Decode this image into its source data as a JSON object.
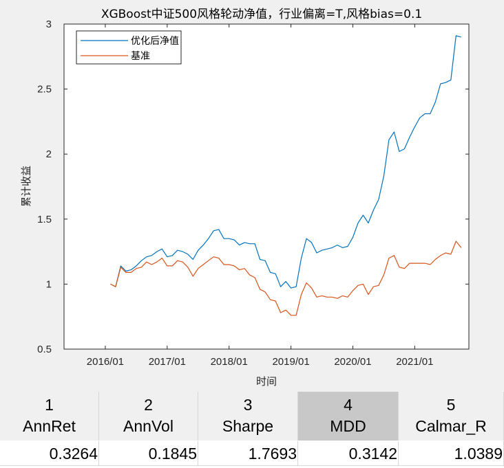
{
  "chart_data": {
    "type": "line",
    "title": "XGBoost中证500风格轮动净值，行业偏离=T,风格bias=0.1",
    "xlabel": "时间",
    "ylabel": "累计收益",
    "ylim": [
      0.5,
      3
    ],
    "yticks": [
      "0.5",
      "1",
      "1.5",
      "2",
      "2.5",
      "3"
    ],
    "xticks": [
      "2016/01",
      "2017/01",
      "2018/01",
      "2019/01",
      "2020/01",
      "2021/01"
    ],
    "legend_position": "top-left",
    "grid": false,
    "x": [
      "2016/02",
      "2016/03",
      "2016/04",
      "2016/05",
      "2016/06",
      "2016/07",
      "2016/08",
      "2016/09",
      "2016/10",
      "2016/11",
      "2016/12",
      "2017/01",
      "2017/02",
      "2017/03",
      "2017/04",
      "2017/05",
      "2017/06",
      "2017/07",
      "2017/08",
      "2017/09",
      "2017/10",
      "2017/11",
      "2017/12",
      "2018/01",
      "2018/02",
      "2018/03",
      "2018/04",
      "2018/05",
      "2018/06",
      "2018/07",
      "2018/08",
      "2018/09",
      "2018/10",
      "2018/11",
      "2018/12",
      "2019/01",
      "2019/02",
      "2019/03",
      "2019/04",
      "2019/05",
      "2019/06",
      "2019/07",
      "2019/08",
      "2019/09",
      "2019/10",
      "2019/11",
      "2019/12",
      "2020/01",
      "2020/02",
      "2020/03",
      "2020/04",
      "2020/05",
      "2020/06",
      "2020/07",
      "2020/08",
      "2020/09",
      "2020/10",
      "2020/11",
      "2020/12",
      "2021/01",
      "2021/02",
      "2021/03",
      "2021/04",
      "2021/05",
      "2021/06",
      "2021/07",
      "2021/08",
      "2021/09",
      "2021/10"
    ],
    "series": [
      {
        "name": "优化后净值",
        "color": "#0072BD",
        "values": [
          1.0,
          0.98,
          1.14,
          1.1,
          1.11,
          1.14,
          1.18,
          1.21,
          1.22,
          1.25,
          1.27,
          1.21,
          1.22,
          1.26,
          1.25,
          1.23,
          1.19,
          1.26,
          1.3,
          1.35,
          1.41,
          1.42,
          1.35,
          1.35,
          1.34,
          1.3,
          1.32,
          1.31,
          1.31,
          1.19,
          1.18,
          1.09,
          1.08,
          0.98,
          1.02,
          0.97,
          0.98,
          1.2,
          1.35,
          1.32,
          1.24,
          1.26,
          1.27,
          1.28,
          1.3,
          1.28,
          1.29,
          1.36,
          1.47,
          1.53,
          1.47,
          1.57,
          1.65,
          1.83,
          2.11,
          2.17,
          2.02,
          2.04,
          2.13,
          2.21,
          2.28,
          2.31,
          2.31,
          2.4,
          2.54,
          2.55,
          2.57,
          2.91,
          2.9
        ]
      },
      {
        "name": "基准",
        "color": "#D95319",
        "values": [
          1.0,
          0.98,
          1.13,
          1.09,
          1.09,
          1.12,
          1.13,
          1.17,
          1.15,
          1.17,
          1.2,
          1.14,
          1.14,
          1.18,
          1.17,
          1.13,
          1.06,
          1.12,
          1.15,
          1.18,
          1.21,
          1.2,
          1.15,
          1.15,
          1.14,
          1.11,
          1.12,
          1.07,
          1.05,
          0.96,
          0.94,
          0.88,
          0.87,
          0.78,
          0.8,
          0.76,
          0.76,
          0.92,
          1.01,
          0.97,
          0.9,
          0.91,
          0.9,
          0.9,
          0.89,
          0.91,
          0.9,
          0.95,
          0.99,
          1.0,
          0.92,
          0.98,
          0.99,
          1.07,
          1.2,
          1.22,
          1.13,
          1.12,
          1.16,
          1.16,
          1.16,
          1.16,
          1.15,
          1.19,
          1.22,
          1.24,
          1.23,
          1.33,
          1.28
        ]
      }
    ]
  },
  "table": {
    "columns": [
      {
        "index": "1",
        "name": "AnnRet",
        "value": "0.3264"
      },
      {
        "index": "2",
        "name": "AnnVol",
        "value": "0.1845"
      },
      {
        "index": "3",
        "name": "Sharpe",
        "value": "1.7693"
      },
      {
        "index": "4",
        "name": "MDD",
        "value": "0.3142"
      },
      {
        "index": "5",
        "name": "Calmar_R",
        "value": "1.0389"
      }
    ],
    "selected_column": "4"
  }
}
